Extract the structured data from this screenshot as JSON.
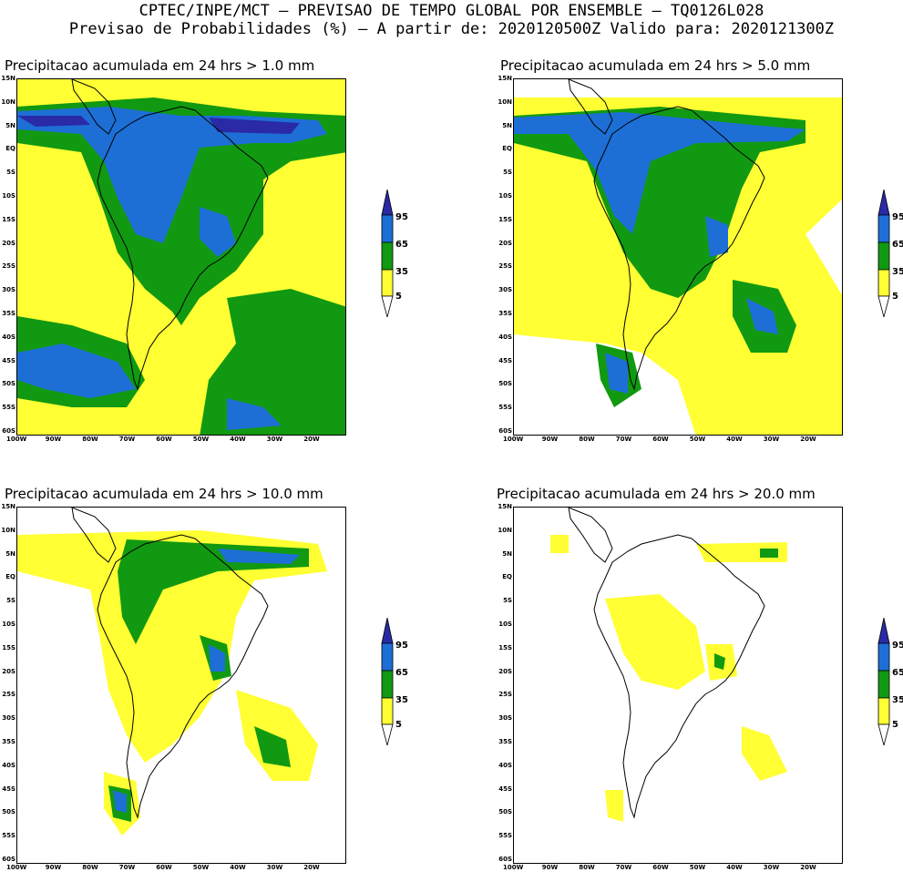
{
  "header": {
    "line1": "CPTEC/INPE/MCT – PREVISAO DE TEMPO GLOBAL POR ENSEMBLE – TQ0126L028",
    "line2": "Previsao de Probabilidades (%) –  A partir de: 2020120500Z  Valido para: 2020121300Z"
  },
  "panels": [
    {
      "title": "Precipitacao acumulada em 24 hrs > 1.0 mm"
    },
    {
      "title": "Precipitacao acumulada em 24 hrs > 5.0 mm"
    },
    {
      "title": "Precipitacao acumulada em 24 hrs > 10.0 mm"
    },
    {
      "title": "Precipitacao acumulada em 24 hrs > 20.0 mm"
    }
  ],
  "lat_labels": [
    "15N",
    "10N",
    "5N",
    "EQ",
    "5S",
    "10S",
    "15S",
    "20S",
    "25S",
    "30S",
    "35S",
    "40S",
    "45S",
    "50S",
    "55S",
    "60S"
  ],
  "lon_labels": [
    "100W",
    "90W",
    "80W",
    "70W",
    "60W",
    "50W",
    "40W",
    "30W",
    "20W"
  ],
  "colorbar": {
    "levels": [
      "95",
      "65",
      "35",
      "5"
    ],
    "colors": {
      "yellow": "#ffff33",
      "green": "#119911",
      "blue": "#1d6fd6",
      "darkblue": "#2a2aa6"
    }
  }
}
